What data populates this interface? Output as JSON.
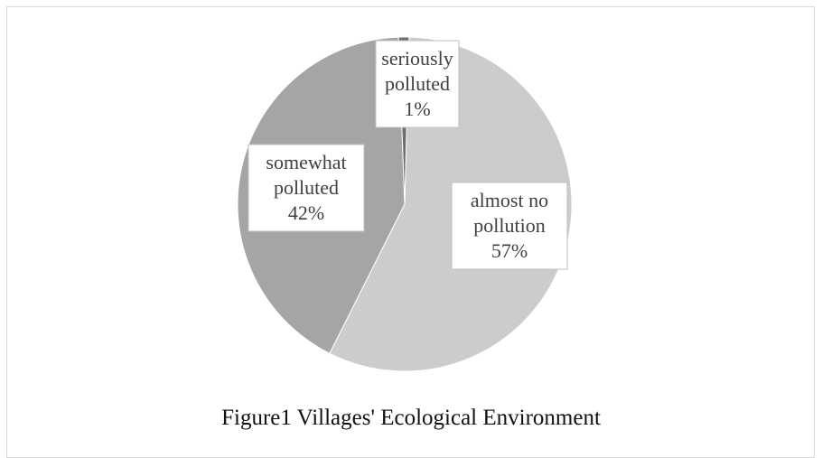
{
  "chart_data": {
    "type": "pie",
    "title": "",
    "caption": "Figure1 Villages' Ecological Environment",
    "slices": [
      {
        "label": "almost no pollution",
        "value": 57,
        "display": "57%",
        "color": "#cccccc"
      },
      {
        "label": "somewhat polluted",
        "value": 42,
        "display": "42%",
        "color": "#a5a5a5"
      },
      {
        "label": "seriously polluted",
        "value": 1,
        "display": "1%",
        "color": "#6e6e6e"
      }
    ],
    "legend": "none",
    "data_labels": "label-name-and-percent"
  }
}
